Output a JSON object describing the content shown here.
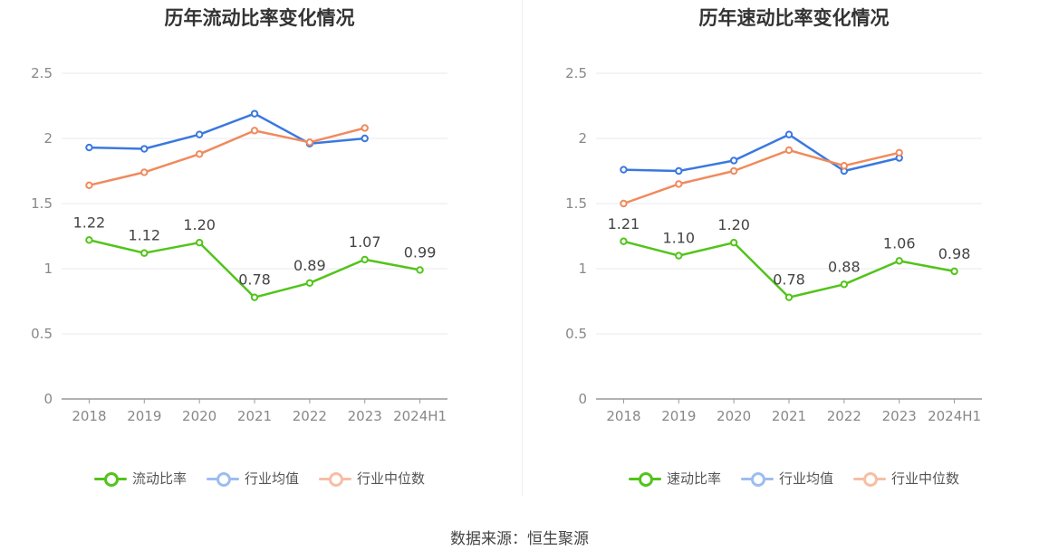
{
  "source_label": "数据来源：恒生聚源",
  "colors": {
    "primary": "#52c41a",
    "avg": "#3a78e0",
    "median": "#f08a5d",
    "grid": "#e8eaf2",
    "axis": "#888888"
  },
  "chart_data": [
    {
      "type": "line",
      "title": "历年流动比率变化情况",
      "categories": [
        "2018",
        "2019",
        "2020",
        "2021",
        "2022",
        "2023",
        "2024H1"
      ],
      "ylim": [
        0,
        2.5
      ],
      "yticks": [
        "0",
        "0.5",
        "1",
        "1.5",
        "2",
        "2.5"
      ],
      "grid": true,
      "legend_position": "bottom",
      "series": [
        {
          "name": "流动比率",
          "values": [
            1.22,
            1.12,
            1.2,
            0.78,
            0.89,
            1.07,
            0.99
          ],
          "labels": [
            "1.22",
            "1.12",
            "1.20",
            "0.78",
            "0.89",
            "1.07",
            "0.99"
          ]
        },
        {
          "name": "行业均值",
          "values": [
            1.93,
            1.92,
            2.03,
            2.19,
            1.96,
            2.0,
            null
          ]
        },
        {
          "name": "行业中位数",
          "values": [
            1.64,
            1.74,
            1.88,
            2.06,
            1.97,
            2.08,
            null
          ]
        }
      ]
    },
    {
      "type": "line",
      "title": "历年速动比率变化情况",
      "categories": [
        "2018",
        "2019",
        "2020",
        "2021",
        "2022",
        "2023",
        "2024H1"
      ],
      "ylim": [
        0,
        2.5
      ],
      "yticks": [
        "0",
        "0.5",
        "1",
        "1.5",
        "2",
        "2.5"
      ],
      "grid": true,
      "legend_position": "bottom",
      "series": [
        {
          "name": "速动比率",
          "values": [
            1.21,
            1.1,
            1.2,
            0.78,
            0.88,
            1.06,
            0.98
          ],
          "labels": [
            "1.21",
            "1.10",
            "1.20",
            "0.78",
            "0.88",
            "1.06",
            "0.98"
          ]
        },
        {
          "name": "行业均值",
          "values": [
            1.76,
            1.75,
            1.83,
            2.03,
            1.75,
            1.85,
            null
          ]
        },
        {
          "name": "行业中位数",
          "values": [
            1.5,
            1.65,
            1.75,
            1.91,
            1.79,
            1.89,
            null
          ]
        }
      ]
    }
  ]
}
